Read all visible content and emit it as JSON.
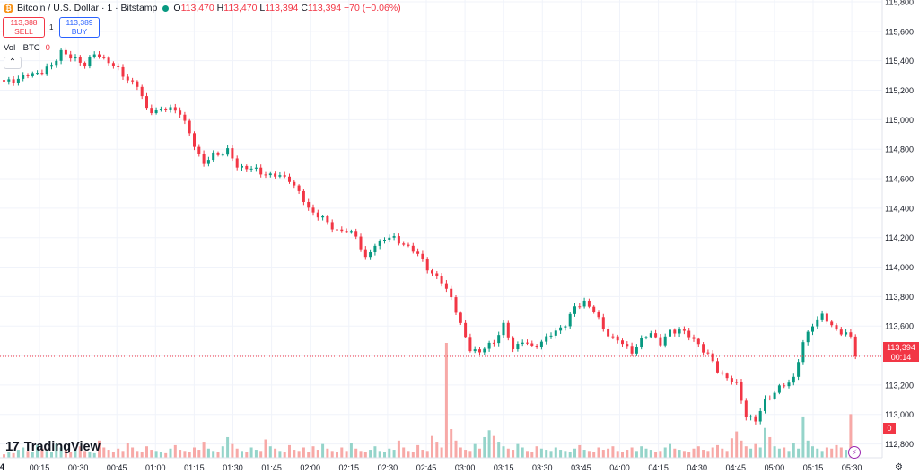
{
  "header": {
    "symbol": "Bitcoin / U.S. Dollar · 1 · Bitstamp",
    "coin_glyph": "₿",
    "o_label": "O",
    "o": "113,470",
    "h_label": "H",
    "h": "113,470",
    "l_label": "L",
    "l": "113,394",
    "c_label": "C",
    "c": "113,394",
    "change": "−70 (−0.06%)"
  },
  "trade": {
    "sell_price": "113,388",
    "sell_label": "SELL",
    "spread": "1",
    "buy_price": "113,389",
    "buy_label": "BUY"
  },
  "volume_legend": {
    "label": "Vol · BTC",
    "value": "0"
  },
  "collapse_glyph": "⌃",
  "brand": {
    "mark": "17",
    "name": "TradingView"
  },
  "last_price": {
    "price": "113,394",
    "countdown": "00:14"
  },
  "volume_tag": "0",
  "left_edge_label": "4",
  "gear_glyph": "⚙",
  "flash_glyph": "⚡",
  "colors": {
    "up": "#089981",
    "down": "#f23645",
    "up_volume": "#95d4ca",
    "down_volume": "#f7a9a7",
    "grid": "#f0f3fa"
  },
  "chart_data": {
    "type": "candlestick",
    "title": "",
    "xlabel": "",
    "ylabel": "",
    "ylim": [
      112700,
      115800
    ],
    "y_ticks": [
      "112,800",
      "113,000",
      "113,200",
      "113,400",
      "113,600",
      "113,800",
      "114,000",
      "114,200",
      "114,400",
      "114,600",
      "114,800",
      "115,000",
      "115,200",
      "115,400",
      "115,600",
      "115,800"
    ],
    "x_ticks": [
      "00:15",
      "00:30",
      "00:45",
      "01:00",
      "01:15",
      "01:30",
      "01:45",
      "02:00",
      "02:15",
      "02:30",
      "02:45",
      "03:00",
      "03:15",
      "03:30",
      "03:45",
      "04:00",
      "04:15",
      "04:30",
      "04:45",
      "05:00",
      "05:15",
      "05:30"
    ],
    "close_path": [
      [
        0,
        115250
      ],
      [
        5,
        115300
      ],
      [
        8,
        115330
      ],
      [
        10,
        115360
      ],
      [
        12,
        115470
      ],
      [
        14,
        115420
      ],
      [
        17,
        115380
      ],
      [
        19,
        115440
      ],
      [
        22,
        115400
      ],
      [
        25,
        115300
      ],
      [
        28,
        115230
      ],
      [
        30,
        115070
      ],
      [
        33,
        115060
      ],
      [
        35,
        115080
      ],
      [
        37,
        115050
      ],
      [
        39,
        114900
      ],
      [
        42,
        114700
      ],
      [
        44,
        114760
      ],
      [
        47,
        114790
      ],
      [
        49,
        114680
      ],
      [
        51,
        114680
      ],
      [
        54,
        114640
      ],
      [
        57,
        114620
      ],
      [
        60,
        114600
      ],
      [
        62,
        114500
      ],
      [
        64,
        114400
      ],
      [
        66,
        114350
      ],
      [
        68,
        114300
      ],
      [
        70,
        114250
      ],
      [
        72,
        114240
      ],
      [
        74,
        114220
      ],
      [
        76,
        114050
      ],
      [
        78,
        114150
      ],
      [
        80,
        114200
      ],
      [
        82,
        114190
      ],
      [
        84,
        114160
      ],
      [
        86,
        114110
      ],
      [
        88,
        114050
      ],
      [
        90,
        113950
      ],
      [
        92,
        113900
      ],
      [
        94,
        113800
      ],
      [
        96,
        113600
      ],
      [
        98,
        113450
      ],
      [
        100,
        113420
      ],
      [
        103,
        113500
      ],
      [
        105,
        113600
      ],
      [
        107,
        113450
      ],
      [
        109,
        113500
      ],
      [
        111,
        113450
      ],
      [
        113,
        113500
      ],
      [
        116,
        113560
      ],
      [
        118,
        113620
      ],
      [
        120,
        113720
      ],
      [
        122,
        113770
      ],
      [
        124,
        113700
      ],
      [
        126,
        113580
      ],
      [
        128,
        113520
      ],
      [
        130,
        113480
      ],
      [
        132,
        113430
      ],
      [
        134,
        113500
      ],
      [
        136,
        113560
      ],
      [
        138,
        113480
      ],
      [
        140,
        113560
      ],
      [
        142,
        113580
      ],
      [
        144,
        113530
      ],
      [
        146,
        113480
      ],
      [
        148,
        113400
      ],
      [
        150,
        113300
      ],
      [
        152,
        113250
      ],
      [
        154,
        113200
      ],
      [
        156,
        113000
      ],
      [
        158,
        112950
      ],
      [
        160,
        113100
      ],
      [
        162,
        113150
      ],
      [
        164,
        113200
      ],
      [
        166,
        113250
      ],
      [
        168,
        113480
      ],
      [
        170,
        113620
      ],
      [
        172,
        113670
      ],
      [
        174,
        113600
      ],
      [
        176,
        113560
      ],
      [
        178,
        113520
      ],
      [
        179,
        113394
      ]
    ],
    "volume": [
      0.3,
      0.5,
      0.4,
      0.7,
      0.9,
      0.6,
      0.5,
      1.1,
      0.8,
      0.6,
      0.5,
      1.2,
      0.9,
      0.7,
      0.5,
      0.8,
      1.0,
      0.6,
      0.5,
      0.4,
      1.5,
      0.9,
      0.7,
      0.5,
      0.8,
      0.6,
      1.3,
      0.9,
      0.6,
      0.5,
      1.0,
      0.7,
      0.6,
      0.5,
      0.4,
      0.8,
      1.1,
      0.7,
      0.6,
      0.5,
      0.9,
      0.7,
      1.4,
      0.8,
      0.6,
      0.5,
      1.0,
      1.8,
      1.2,
      0.8,
      0.6,
      0.5,
      0.9,
      0.7,
      0.6,
      1.6,
      1.0,
      0.8,
      0.6,
      0.5,
      1.1,
      0.7,
      0.6,
      0.9,
      0.5,
      1.0,
      0.7,
      1.2,
      0.8,
      0.6,
      0.5,
      0.9,
      0.6,
      1.3,
      0.8,
      0.6,
      0.5,
      0.7,
      1.0,
      0.6,
      0.5,
      0.8,
      0.7,
      1.5,
      0.9,
      0.6,
      0.5,
      1.1,
      0.7,
      0.6,
      1.9,
      1.4,
      0.9,
      10,
      2.5,
      1.5,
      0.9,
      0.7,
      0.6,
      1.2,
      0.8,
      1.8,
      2.4,
      1.9,
      1.4,
      1.0,
      0.8,
      0.7,
      1.2,
      0.9,
      0.6,
      0.5,
      1.0,
      0.8,
      0.7,
      0.6,
      0.9,
      0.7,
      0.6,
      0.5,
      0.8,
      1.1,
      0.7,
      0.6,
      0.5,
      0.9,
      0.7,
      0.8,
      1.0,
      0.6,
      0.5,
      0.7,
      0.9,
      0.6,
      1.0,
      0.8,
      0.7,
      0.5,
      0.6,
      0.9,
      1.2,
      0.8,
      0.7,
      0.6,
      0.5,
      0.8,
      1.0,
      0.7,
      0.6,
      0.9,
      1.1,
      0.8,
      0.6,
      1.7,
      2.3,
      1.5,
      1.0,
      0.8,
      1.2,
      0.9,
      2.6,
      1.8,
      1.0,
      0.8,
      0.9,
      0.6,
      1.3,
      0.8,
      3.6,
      1.5,
      1.0,
      0.8,
      0.6,
      0.9,
      0.8,
      1.1,
      0.9,
      0.7,
      3.8,
      0.9
    ]
  }
}
